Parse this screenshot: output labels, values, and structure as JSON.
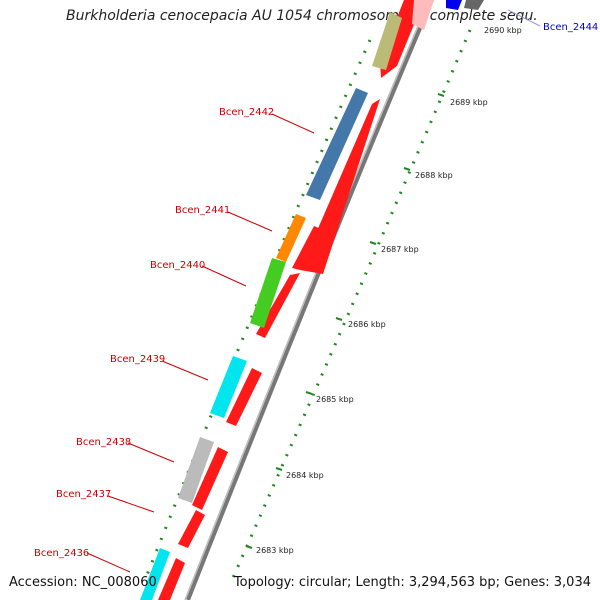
{
  "title": "Burkholderia cenocepacia AU 1054 chromosome 1, complete sequ...",
  "accession": "Accession: NC_008060",
  "summary": "Topology: circular; Length: 3,294,563 bp; Genes: 3,034",
  "colors": {
    "cds_forward": "#ff0000",
    "backbone": "#888888",
    "kbp_ticks": "#228822",
    "label_red": "#cc0000",
    "label_blue": "#0000cc"
  },
  "genes": [
    {
      "name": "Bcen_2436",
      "color": "#00e5ee"
    },
    {
      "name": "Bcen_2437",
      "color": "#ff0000"
    },
    {
      "name": "Bcen_2438",
      "color": "#bbbbbb"
    },
    {
      "name": "Bcen_2439",
      "color": "#00e5ee"
    },
    {
      "name": "Bcen_2440",
      "color": "#44cc22"
    },
    {
      "name": "Bcen_2441",
      "color": "#ff8800"
    },
    {
      "name": "Bcen_2442",
      "color": "#4477aa"
    },
    {
      "name": "Bcen_2444",
      "color": "#0000ee"
    }
  ],
  "kbp_marks": [
    {
      "label": "2683 kbp"
    },
    {
      "label": "2684 kbp"
    },
    {
      "label": "2685 kbp"
    },
    {
      "label": "2686 kbp"
    },
    {
      "label": "2687 kbp"
    },
    {
      "label": "2688 kbp"
    },
    {
      "label": "2689 kbp"
    },
    {
      "label": "2690 kbp"
    }
  ]
}
